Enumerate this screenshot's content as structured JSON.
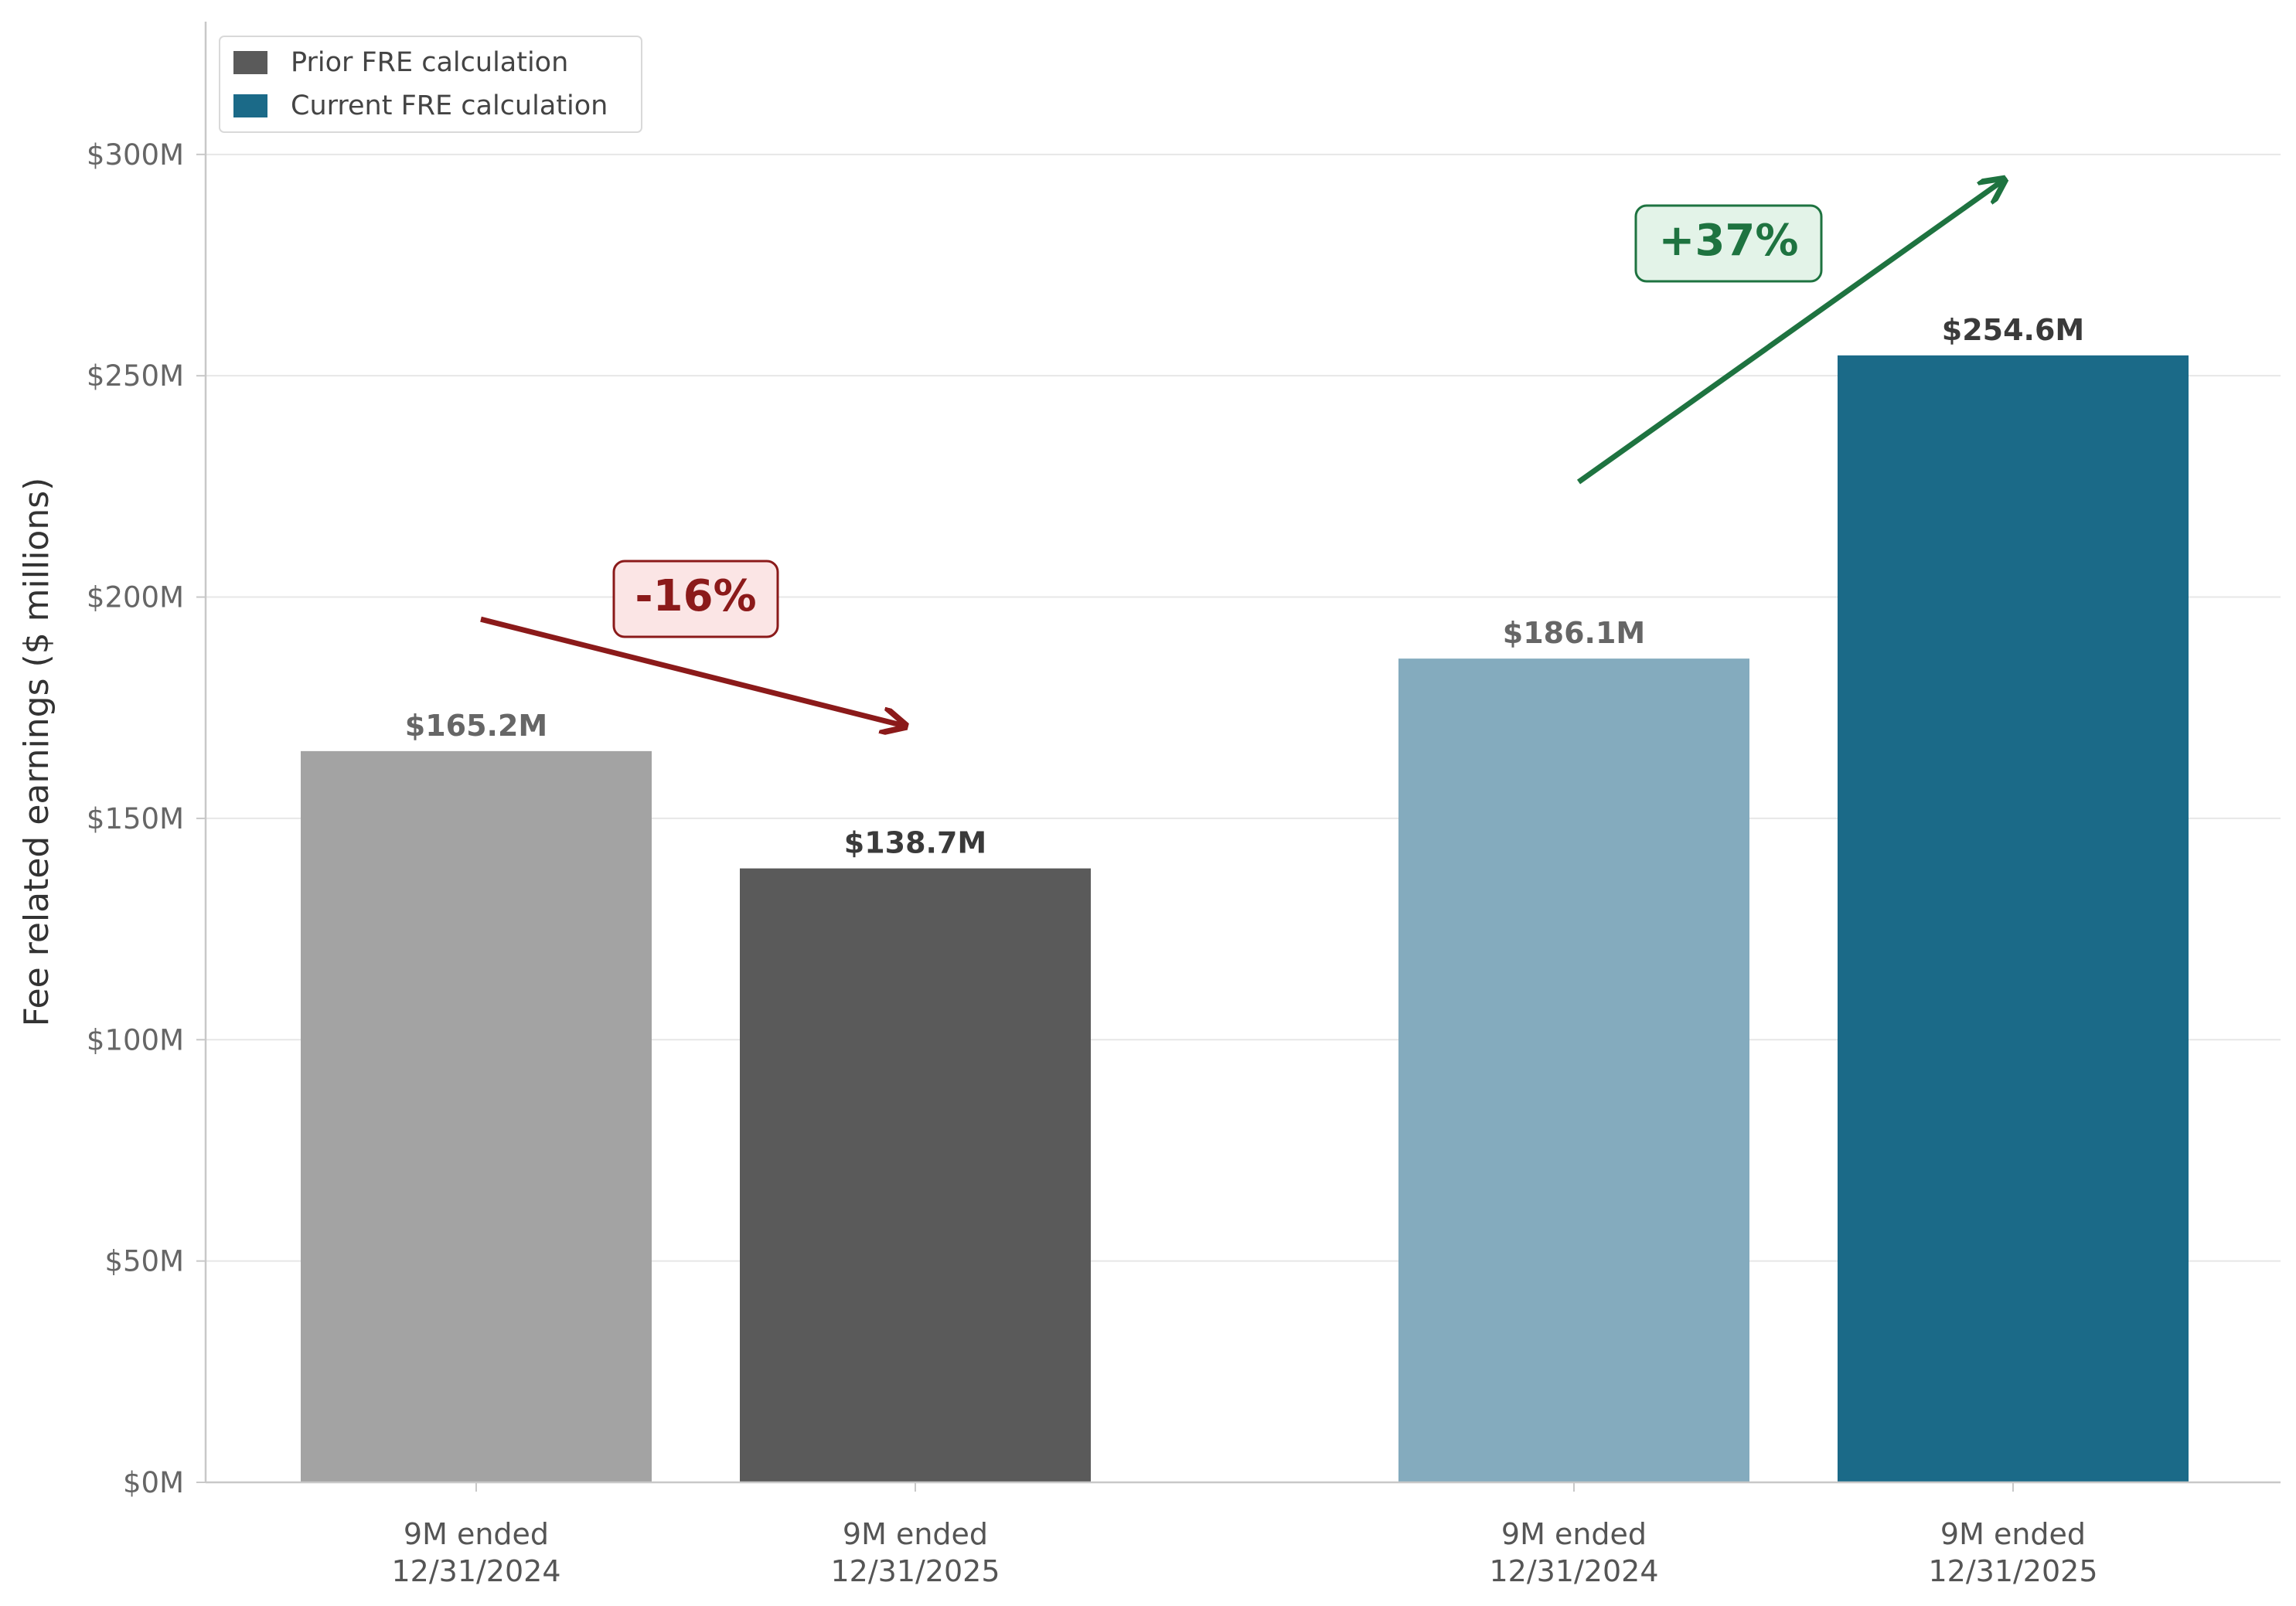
{
  "chart_data": {
    "type": "bar",
    "ylabel": "Fee related earnings ($ millions)",
    "ylim": [
      0,
      330
    ],
    "yticks": [
      0,
      50,
      100,
      150,
      200,
      250,
      300
    ],
    "ytick_labels": [
      "$0M",
      "$50M",
      "$100M",
      "$150M",
      "$200M",
      "$250M",
      "$300M"
    ],
    "grid": "horizontal",
    "legend_position": "top-left",
    "legend": [
      {
        "label": "Prior FRE calculation",
        "color": "#5a5a5a"
      },
      {
        "label": "Current FRE calculation",
        "color": "#1b6a88"
      }
    ],
    "series": [
      {
        "name": "Prior FRE calculation",
        "values": [
          165.2,
          138.7
        ],
        "value_labels": [
          "$165.2M",
          "$138.7M"
        ],
        "categories": [
          [
            "9M ended",
            "12/31/2024"
          ],
          [
            "9M ended",
            "12/31/2025"
          ]
        ],
        "colors": [
          "#a3a3a3",
          "#5a5a5a"
        ],
        "change_label": "-16%",
        "change_color": "#8b1a1a",
        "change_box_fill": "#fbe5e5",
        "change_arrow_from": 195,
        "change_arrow_to": 171
      },
      {
        "name": "Current FRE calculation",
        "values": [
          186.1,
          254.6
        ],
        "value_labels": [
          "$186.1M",
          "$254.6M"
        ],
        "categories": [
          [
            "9M ended",
            "12/31/2024"
          ],
          [
            "9M ended",
            "12/31/2025"
          ]
        ],
        "colors": [
          "#84abbe",
          "#1b6a88"
        ],
        "change_label": "+37%",
        "change_color": "#1e7340",
        "change_box_fill": "#e3f3e8",
        "change_arrow_from": 226,
        "change_arrow_to": 294
      }
    ]
  }
}
